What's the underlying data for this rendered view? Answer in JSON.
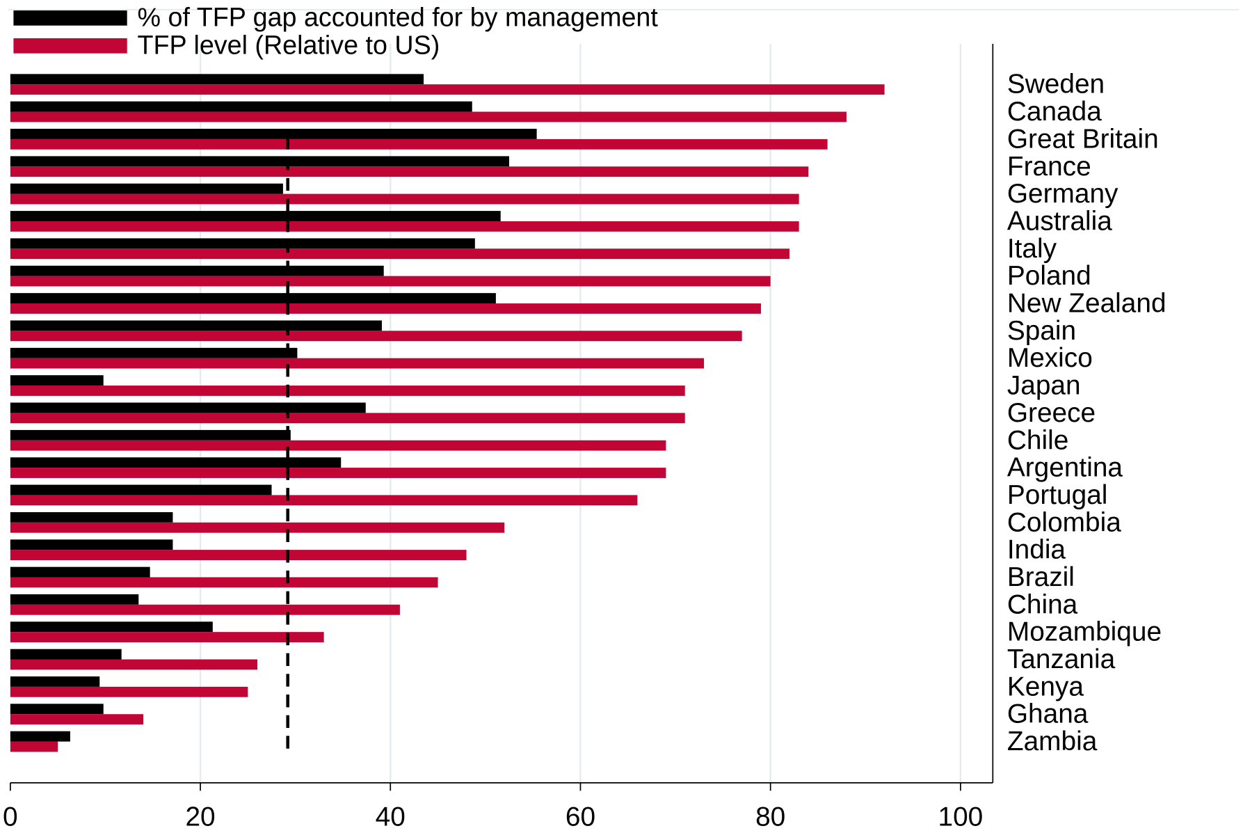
{
  "chart_data": {
    "type": "bar",
    "orientation": "horizontal",
    "categories": [
      "Sweden",
      "Canada",
      "Great Britain",
      "France",
      "Germany",
      "Australia",
      "Italy",
      "Poland",
      "New Zealand",
      "Spain",
      "Mexico",
      "Japan",
      "Greece",
      "Chile",
      "Argentina",
      "Portugal",
      "Colombia",
      "India",
      "Brazil",
      "China",
      "Mozambique",
      "Tanzania",
      "Kenya",
      "Ghana",
      "Zambia"
    ],
    "series": [
      {
        "name": "% of TFP gap accounted for by management",
        "color": "#000000",
        "values": [
          43.5,
          48.6,
          55.4,
          52.5,
          28.7,
          51.6,
          48.9,
          39.3,
          51.1,
          39.1,
          30.2,
          9.8,
          37.4,
          29.5,
          34.8,
          27.5,
          17.1,
          17.1,
          14.7,
          13.5,
          21.3,
          11.7,
          9.4,
          9.8,
          6.3
        ]
      },
      {
        "name": "TFP level (Relative to US)",
        "color": "#c10534",
        "values": [
          92,
          88,
          86,
          84,
          83,
          83,
          82,
          80,
          79,
          77,
          73,
          71,
          71,
          69,
          69,
          66,
          52,
          48,
          45,
          41,
          33,
          26,
          25,
          14,
          5
        ]
      }
    ],
    "reference_line": {
      "value": 29.2,
      "style": "dashed",
      "from_category": 2
    },
    "xlim": [
      0,
      103.4
    ],
    "xticks": [
      0,
      20,
      40,
      60,
      80,
      100
    ],
    "grid": true,
    "legend": "top-left"
  }
}
